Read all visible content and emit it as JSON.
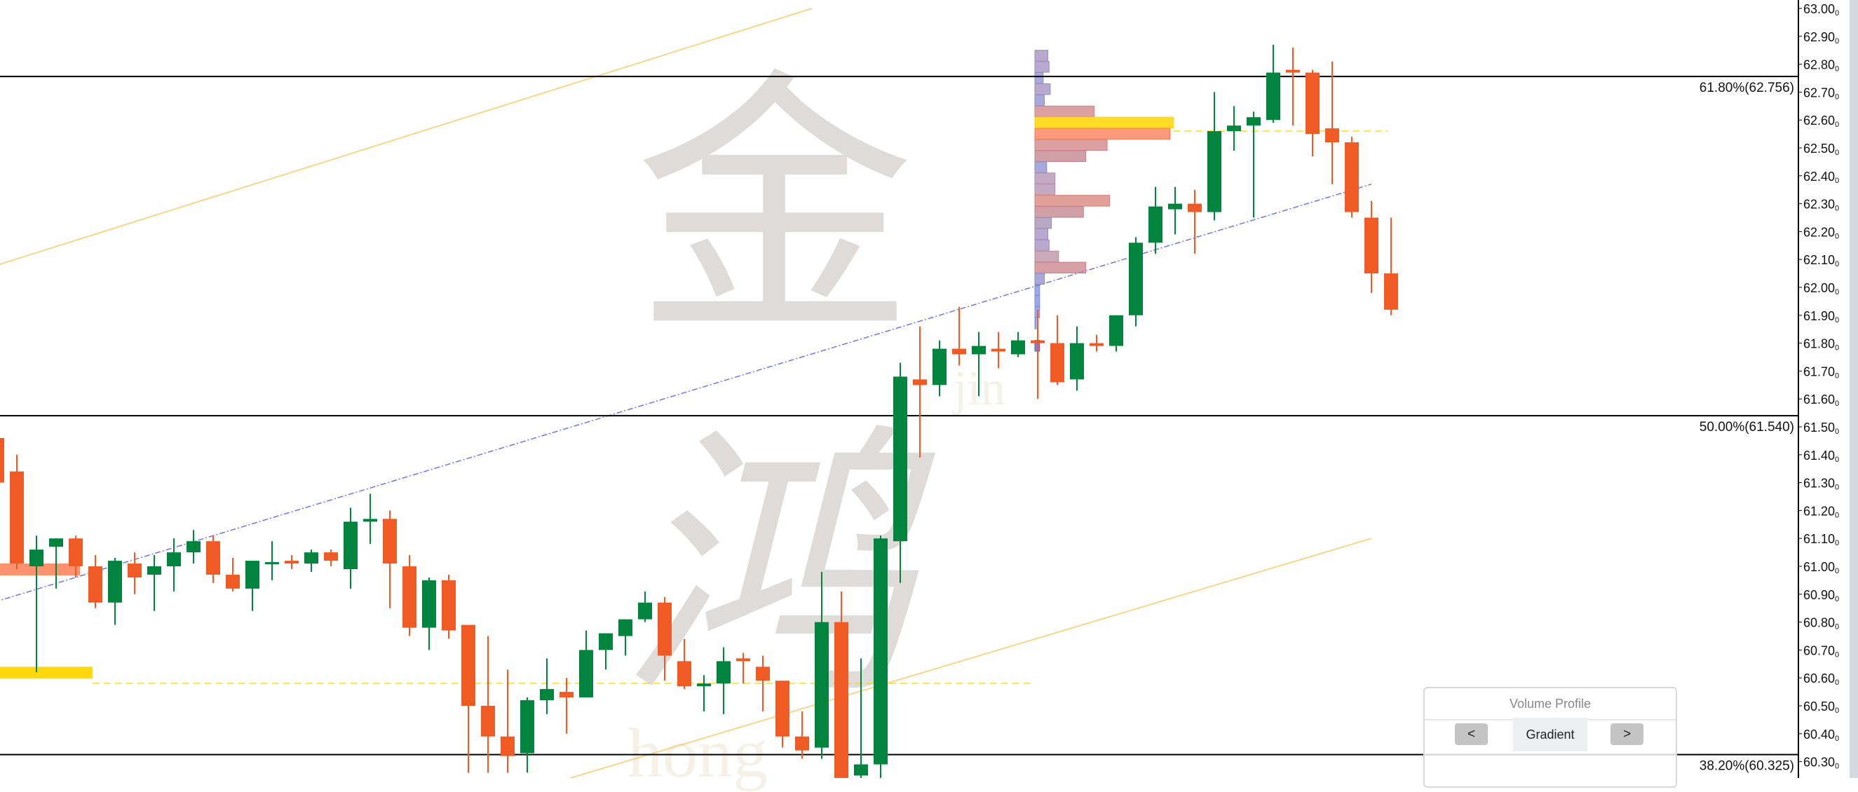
{
  "chart_data": {
    "type": "candlestick",
    "ylim": [
      60.22,
      63.03
    ],
    "y_ticks": [
      "63.000",
      "62.900",
      "62.800",
      "62.700",
      "62.600",
      "62.500",
      "62.400",
      "62.300",
      "62.200",
      "62.100",
      "62.000",
      "61.900",
      "61.800",
      "61.700",
      "61.600",
      "61.500",
      "61.400",
      "61.300",
      "61.200",
      "61.100",
      "61.000",
      "60.900",
      "60.800",
      "60.700",
      "60.600",
      "60.500",
      "60.400",
      "60.300"
    ],
    "colors": {
      "up": "#00843e",
      "down": "#f05a24",
      "fib_line": "#000000",
      "trend_channel": "#fbc96a",
      "mid_trend": "#5a5af0",
      "poc": "#ffd700"
    },
    "candles": [
      [
        61.46,
        61.48,
        61.28,
        61.3
      ],
      [
        61.34,
        61.4,
        60.99,
        61.01
      ],
      [
        61.0,
        61.11,
        60.62,
        61.06
      ],
      [
        61.07,
        61.1,
        60.92,
        61.1
      ],
      [
        61.1,
        61.11,
        60.96,
        61.0
      ],
      [
        61.0,
        61.04,
        60.85,
        60.87
      ],
      [
        60.87,
        61.03,
        60.79,
        61.02
      ],
      [
        61.01,
        61.05,
        60.9,
        60.96
      ],
      [
        60.97,
        61.04,
        60.84,
        61.0
      ],
      [
        61.0,
        61.1,
        60.91,
        61.05
      ],
      [
        61.05,
        61.13,
        61.01,
        61.09
      ],
      [
        61.09,
        61.11,
        60.94,
        60.97
      ],
      [
        60.97,
        61.03,
        60.91,
        60.92
      ],
      [
        60.92,
        61.02,
        60.84,
        61.02
      ],
      [
        61.01,
        61.09,
        60.95,
        61.015
      ],
      [
        61.02,
        61.04,
        60.99,
        61.01
      ],
      [
        61.01,
        61.06,
        60.98,
        61.05
      ],
      [
        61.05,
        61.06,
        61.0,
        61.02
      ],
      [
        60.99,
        61.21,
        60.92,
        61.16
      ],
      [
        61.16,
        61.26,
        61.08,
        61.17
      ],
      [
        61.17,
        61.2,
        60.85,
        61.01
      ],
      [
        61.0,
        61.04,
        60.75,
        60.78
      ],
      [
        60.78,
        60.96,
        60.7,
        60.95
      ],
      [
        60.95,
        60.97,
        60.74,
        60.77
      ],
      [
        60.79,
        60.79,
        60.26,
        60.5
      ],
      [
        60.5,
        60.75,
        60.26,
        60.39
      ],
      [
        60.39,
        60.63,
        60.26,
        60.32
      ],
      [
        60.33,
        60.53,
        60.26,
        60.52
      ],
      [
        60.52,
        60.67,
        60.47,
        60.56
      ],
      [
        60.55,
        60.6,
        60.4,
        60.53
      ],
      [
        60.53,
        60.77,
        60.53,
        60.7
      ],
      [
        60.7,
        60.76,
        60.63,
        60.76
      ],
      [
        60.75,
        60.81,
        60.68,
        60.81
      ],
      [
        60.81,
        60.91,
        60.8,
        60.87
      ],
      [
        60.87,
        60.89,
        60.59,
        60.68
      ],
      [
        60.66,
        60.74,
        60.56,
        60.57
      ],
      [
        60.57,
        60.61,
        60.48,
        60.58
      ],
      [
        60.58,
        60.71,
        60.47,
        60.66
      ],
      [
        60.67,
        60.69,
        60.58,
        60.66
      ],
      [
        60.64,
        60.68,
        60.48,
        60.59
      ],
      [
        60.59,
        60.59,
        60.35,
        60.39
      ],
      [
        60.39,
        60.48,
        60.31,
        60.34
      ],
      [
        60.35,
        60.98,
        60.31,
        60.8
      ],
      [
        60.8,
        60.91,
        60.23,
        60.24
      ],
      [
        60.25,
        60.67,
        60.23,
        60.29
      ],
      [
        60.29,
        61.11,
        60.24,
        61.1
      ],
      [
        61.09,
        61.73,
        60.94,
        61.68
      ],
      [
        61.67,
        61.86,
        61.39,
        61.65
      ],
      [
        61.65,
        61.81,
        61.61,
        61.78
      ],
      [
        61.78,
        61.93,
        61.72,
        61.76
      ],
      [
        61.76,
        61.84,
        61.61,
        61.79
      ],
      [
        61.78,
        61.84,
        61.71,
        61.77
      ],
      [
        61.76,
        61.84,
        61.75,
        61.81
      ],
      [
        61.81,
        61.92,
        61.6,
        61.8
      ],
      [
        61.8,
        61.9,
        61.65,
        61.66
      ],
      [
        61.67,
        61.86,
        61.63,
        61.8
      ],
      [
        61.8,
        61.83,
        61.77,
        61.79
      ],
      [
        61.79,
        61.9,
        61.77,
        61.9
      ],
      [
        61.9,
        62.18,
        61.86,
        62.16
      ],
      [
        62.16,
        62.36,
        62.12,
        62.29
      ],
      [
        62.28,
        62.36,
        62.19,
        62.3
      ],
      [
        62.3,
        62.35,
        62.12,
        62.27
      ],
      [
        62.27,
        62.7,
        62.24,
        62.56
      ],
      [
        62.56,
        62.65,
        62.49,
        62.58
      ],
      [
        62.58,
        62.63,
        62.25,
        62.61
      ],
      [
        62.6,
        62.87,
        62.59,
        62.77
      ],
      [
        62.78,
        62.86,
        62.58,
        62.77
      ],
      [
        62.77,
        62.78,
        62.47,
        62.55
      ],
      [
        62.57,
        62.81,
        62.37,
        62.52
      ],
      [
        62.52,
        62.54,
        62.25,
        62.27
      ],
      [
        62.25,
        62.31,
        61.98,
        62.05
      ],
      [
        62.05,
        62.25,
        61.9,
        61.92
      ]
    ],
    "fib_levels": [
      {
        "label": "61.80%(62.756)",
        "price": 62.756
      },
      {
        "label": "50.00%(61.540)",
        "price": 61.54
      },
      {
        "label": "38.20%(60.325)",
        "price": 60.325
      }
    ],
    "volume_profile_left": [
      {
        "price": 60.99,
        "volume": 58,
        "color": "#ff8c66"
      },
      {
        "price": 60.62,
        "volume": 67,
        "color": "#ffd700"
      }
    ],
    "volume_profile_right": [
      {
        "price": 62.83,
        "volume": 11,
        "color": "#a08cbe"
      },
      {
        "price": 62.79,
        "volume": 12,
        "color": "#a08cbe"
      },
      {
        "price": 62.75,
        "volume": 7,
        "color": "#8c8ccc"
      },
      {
        "price": 62.71,
        "volume": 13,
        "color": "#a08cbe"
      },
      {
        "price": 62.67,
        "volume": 8,
        "color": "#8c8ccc"
      },
      {
        "price": 62.63,
        "volume": 50,
        "color": "#d08080"
      },
      {
        "price": 62.59,
        "volume": 117,
        "color": "#ffd700"
      },
      {
        "price": 62.55,
        "volume": 114,
        "color": "#ff7a50"
      },
      {
        "price": 62.51,
        "volume": 61,
        "color": "#d08080"
      },
      {
        "price": 62.47,
        "volume": 43,
        "color": "#c08088"
      },
      {
        "price": 62.43,
        "volume": 10,
        "color": "#8c8ccc"
      },
      {
        "price": 62.39,
        "volume": 17,
        "color": "#b08cae"
      },
      {
        "price": 62.35,
        "volume": 17,
        "color": "#b08cae"
      },
      {
        "price": 62.31,
        "volume": 63,
        "color": "#d88078"
      },
      {
        "price": 62.27,
        "volume": 41,
        "color": "#c08088"
      },
      {
        "price": 62.23,
        "volume": 14,
        "color": "#a08cae"
      },
      {
        "price": 62.19,
        "volume": 11,
        "color": "#a08cbe"
      },
      {
        "price": 62.15,
        "volume": 12,
        "color": "#a08cbe"
      },
      {
        "price": 62.11,
        "volume": 20,
        "color": "#b88ca0"
      },
      {
        "price": 62.07,
        "volume": 43,
        "color": "#c88088"
      },
      {
        "price": 62.03,
        "volume": 8,
        "color": "#8c8ccc"
      },
      {
        "price": 61.99,
        "volume": 4,
        "color": "#7c8cdc"
      },
      {
        "price": 61.95,
        "volume": 4,
        "color": "#7c8cdc"
      },
      {
        "price": 61.91,
        "volume": 4,
        "color": "#7c8cdc"
      },
      {
        "price": 61.87,
        "volume": 1,
        "color": "#7c8cdc"
      },
      {
        "price": 61.79,
        "volume": 4,
        "color": "#5a5ac0"
      }
    ],
    "poc_lines": [
      60.58,
      62.56
    ],
    "trend_lines": [
      {
        "kind": "upper-channel",
        "from": [
          0,
          62.08
        ],
        "to": [
          41.5,
          63.0
        ]
      },
      {
        "kind": "mid-trend",
        "from": [
          -0.7,
          60.86
        ],
        "to": [
          70,
          62.37
        ]
      },
      {
        "kind": "lower-channel",
        "from": [
          28.2,
          60.22
        ],
        "to": [
          70,
          61.1
        ]
      }
    ]
  },
  "watermark": {
    "char1": "金",
    "char2": "鸿",
    "pinyin1": "jin",
    "pinyin2": "hong"
  },
  "volume_profile_panel": {
    "title": "Volume Profile",
    "prev_label": "<",
    "mode_label": "Gradient",
    "next_label": ">"
  }
}
